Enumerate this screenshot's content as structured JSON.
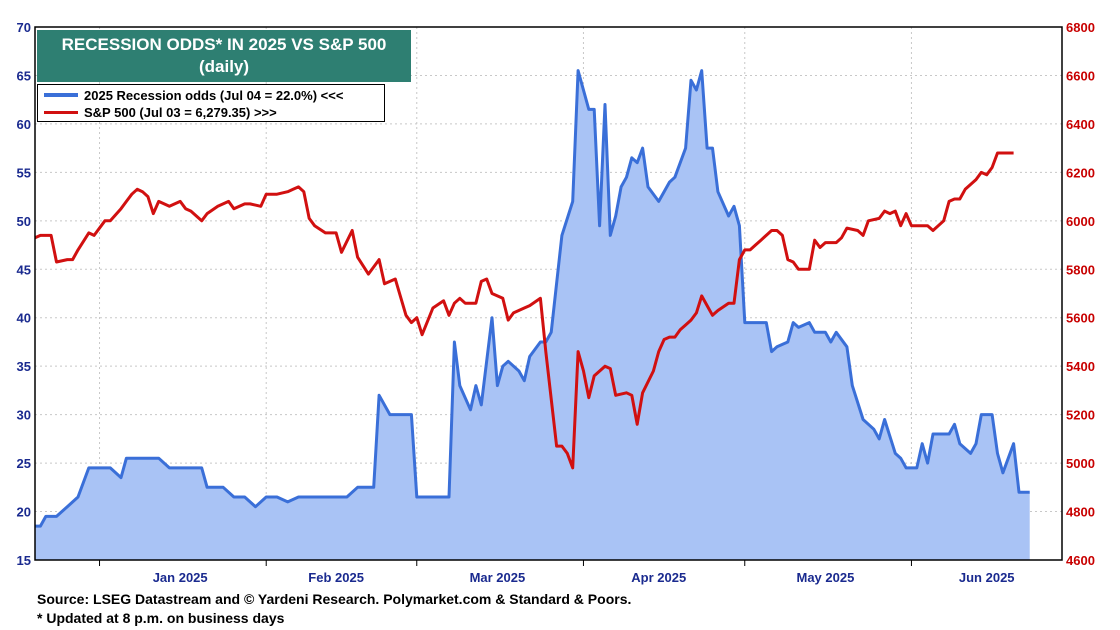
{
  "chart_data": {
    "type": "area",
    "title": "RECESSION ODDS* IN 2025 VS S&P 500",
    "subtitle": "(daily)",
    "legend": {
      "placement": "top-left"
    },
    "grid": true,
    "x_tick_labels": [
      "Jan 2025",
      "Feb 2025",
      "Mar 2025",
      "Apr 2025",
      "May 2025",
      "Jun 2025"
    ],
    "y_left": {
      "ylim": [
        15,
        70
      ],
      "ticks": [
        15,
        20,
        25,
        30,
        35,
        40,
        45,
        50,
        55,
        60,
        65,
        70
      ],
      "color": "#1a2a8f"
    },
    "y_right": {
      "ylim": [
        4600,
        6800
      ],
      "ticks": [
        4600,
        4800,
        5000,
        5200,
        5400,
        5600,
        5800,
        6000,
        6200,
        6400,
        6600,
        6800
      ],
      "color": "#c80000"
    },
    "series": [
      {
        "name": "2025 Recession odds (Jul 04 = 22.0%) <<<",
        "axis": "left",
        "color": "#3a6fd8",
        "fill": "#a9c3f5",
        "points": [
          [
            "2024-12-20",
            18.5
          ],
          [
            "2024-12-21",
            18.5
          ],
          [
            "2024-12-22",
            19.5
          ],
          [
            "2024-12-23",
            19.5
          ],
          [
            "2024-12-24",
            19.5
          ],
          [
            "2024-12-26",
            20.5
          ],
          [
            "2024-12-28",
            21.5
          ],
          [
            "2024-12-30",
            24.5
          ],
          [
            "2025-01-02",
            24.5
          ],
          [
            "2025-01-03",
            24.5
          ],
          [
            "2025-01-05",
            23.5
          ],
          [
            "2025-01-06",
            25.5
          ],
          [
            "2025-01-08",
            25.5
          ],
          [
            "2025-01-10",
            25.5
          ],
          [
            "2025-01-12",
            25.5
          ],
          [
            "2025-01-14",
            24.5
          ],
          [
            "2025-01-16",
            24.5
          ],
          [
            "2025-01-18",
            24.5
          ],
          [
            "2025-01-20",
            24.5
          ],
          [
            "2025-01-21",
            22.5
          ],
          [
            "2025-01-24",
            22.5
          ],
          [
            "2025-01-26",
            21.5
          ],
          [
            "2025-01-28",
            21.5
          ],
          [
            "2025-01-30",
            20.5
          ],
          [
            "2025-02-01",
            21.5
          ],
          [
            "2025-02-03",
            21.5
          ],
          [
            "2025-02-05",
            21.0
          ],
          [
            "2025-02-07",
            21.5
          ],
          [
            "2025-02-10",
            21.5
          ],
          [
            "2025-02-13",
            21.5
          ],
          [
            "2025-02-16",
            21.5
          ],
          [
            "2025-02-18",
            22.5
          ],
          [
            "2025-02-21",
            22.5
          ],
          [
            "2025-02-22",
            32.0
          ],
          [
            "2025-02-24",
            30.0
          ],
          [
            "2025-02-28",
            30.0
          ],
          [
            "2025-03-01",
            21.5
          ],
          [
            "2025-03-04",
            21.5
          ],
          [
            "2025-03-07",
            21.5
          ],
          [
            "2025-03-08",
            37.5
          ],
          [
            "2025-03-09",
            33.0
          ],
          [
            "2025-03-11",
            30.5
          ],
          [
            "2025-03-12",
            33.0
          ],
          [
            "2025-03-13",
            31.0
          ],
          [
            "2025-03-15",
            40.0
          ],
          [
            "2025-03-16",
            33.0
          ],
          [
            "2025-03-17",
            35.0
          ],
          [
            "2025-03-18",
            35.5
          ],
          [
            "2025-03-20",
            34.5
          ],
          [
            "2025-03-21",
            33.5
          ],
          [
            "2025-03-22",
            36.0
          ],
          [
            "2025-03-24",
            37.5
          ],
          [
            "2025-03-25",
            37.5
          ],
          [
            "2025-03-26",
            38.5
          ],
          [
            "2025-03-28",
            48.5
          ],
          [
            "2025-03-30",
            52.0
          ],
          [
            "2025-03-31",
            65.5
          ],
          [
            "2025-04-02",
            61.5
          ],
          [
            "2025-04-03",
            61.5
          ],
          [
            "2025-04-04",
            49.5
          ],
          [
            "2025-04-05",
            62.0
          ],
          [
            "2025-04-06",
            48.5
          ],
          [
            "2025-04-07",
            50.5
          ],
          [
            "2025-04-08",
            53.5
          ],
          [
            "2025-04-09",
            54.5
          ],
          [
            "2025-04-10",
            56.5
          ],
          [
            "2025-04-11",
            56.0
          ],
          [
            "2025-04-12",
            57.5
          ],
          [
            "2025-04-13",
            53.5
          ],
          [
            "2025-04-15",
            52.0
          ],
          [
            "2025-04-17",
            54.0
          ],
          [
            "2025-04-18",
            54.5
          ],
          [
            "2025-04-20",
            57.5
          ],
          [
            "2025-04-21",
            64.5
          ],
          [
            "2025-04-22",
            63.5
          ],
          [
            "2025-04-23",
            65.5
          ],
          [
            "2025-04-24",
            57.5
          ],
          [
            "2025-04-25",
            57.5
          ],
          [
            "2025-04-26",
            53.0
          ],
          [
            "2025-04-28",
            50.5
          ],
          [
            "2025-04-29",
            51.5
          ],
          [
            "2025-04-30",
            49.5
          ],
          [
            "2025-05-01",
            39.5
          ],
          [
            "2025-05-03",
            39.5
          ],
          [
            "2025-05-05",
            39.5
          ],
          [
            "2025-05-06",
            36.5
          ],
          [
            "2025-05-07",
            37.0
          ],
          [
            "2025-05-09",
            37.5
          ],
          [
            "2025-05-10",
            39.5
          ],
          [
            "2025-05-11",
            39.0
          ],
          [
            "2025-05-13",
            39.5
          ],
          [
            "2025-05-14",
            38.5
          ],
          [
            "2025-05-16",
            38.5
          ],
          [
            "2025-05-17",
            37.5
          ],
          [
            "2025-05-18",
            38.5
          ],
          [
            "2025-05-20",
            37.0
          ],
          [
            "2025-05-21",
            33.0
          ],
          [
            "2025-05-23",
            29.5
          ],
          [
            "2025-05-25",
            28.5
          ],
          [
            "2025-05-26",
            27.5
          ],
          [
            "2025-05-27",
            29.5
          ],
          [
            "2025-05-29",
            26.0
          ],
          [
            "2025-05-30",
            25.5
          ],
          [
            "2025-05-31",
            24.5
          ],
          [
            "2025-06-02",
            24.5
          ],
          [
            "2025-06-03",
            27.0
          ],
          [
            "2025-06-04",
            25.0
          ],
          [
            "2025-06-05",
            28.0
          ],
          [
            "2025-06-08",
            28.0
          ],
          [
            "2025-06-09",
            29.0
          ],
          [
            "2025-06-10",
            27.0
          ],
          [
            "2025-06-12",
            26.0
          ],
          [
            "2025-06-13",
            27.0
          ],
          [
            "2025-06-14",
            30.0
          ],
          [
            "2025-06-16",
            30.0
          ],
          [
            "2025-06-17",
            26.0
          ],
          [
            "2025-06-18",
            24.0
          ],
          [
            "2025-06-20",
            27.0
          ],
          [
            "2025-06-21",
            22.0
          ],
          [
            "2025-06-23",
            22.0
          ]
        ]
      },
      {
        "name": "S&P 500 (Jul 03 = 6,279.35) >>>",
        "axis": "right",
        "color": "#d11010",
        "points": [
          [
            "2024-12-20",
            5930
          ],
          [
            "2024-12-21",
            5940
          ],
          [
            "2024-12-23",
            5940
          ],
          [
            "2024-12-24",
            5830
          ],
          [
            "2024-12-26",
            5840
          ],
          [
            "2024-12-27",
            5840
          ],
          [
            "2024-12-28",
            5880
          ],
          [
            "2024-12-30",
            5950
          ],
          [
            "2024-12-31",
            5940
          ],
          [
            "2025-01-02",
            6000
          ],
          [
            "2025-01-03",
            6000
          ],
          [
            "2025-01-05",
            6050
          ],
          [
            "2025-01-06",
            6080
          ],
          [
            "2025-01-07",
            6110
          ],
          [
            "2025-01-08",
            6130
          ],
          [
            "2025-01-09",
            6120
          ],
          [
            "2025-01-10",
            6100
          ],
          [
            "2025-01-11",
            6030
          ],
          [
            "2025-01-12",
            6080
          ],
          [
            "2025-01-14",
            6060
          ],
          [
            "2025-01-16",
            6080
          ],
          [
            "2025-01-17",
            6050
          ],
          [
            "2025-01-18",
            6040
          ],
          [
            "2025-01-20",
            6000
          ],
          [
            "2025-01-21",
            6030
          ],
          [
            "2025-01-23",
            6060
          ],
          [
            "2025-01-25",
            6080
          ],
          [
            "2025-01-26",
            6050
          ],
          [
            "2025-01-28",
            6070
          ],
          [
            "2025-01-29",
            6070
          ],
          [
            "2025-01-31",
            6060
          ],
          [
            "2025-02-01",
            6110
          ],
          [
            "2025-02-03",
            6110
          ],
          [
            "2025-02-05",
            6120
          ],
          [
            "2025-02-06",
            6130
          ],
          [
            "2025-02-07",
            6140
          ],
          [
            "2025-02-08",
            6120
          ],
          [
            "2025-02-09",
            6010
          ],
          [
            "2025-02-10",
            5980
          ],
          [
            "2025-02-12",
            5950
          ],
          [
            "2025-02-14",
            5950
          ],
          [
            "2025-02-15",
            5870
          ],
          [
            "2025-02-17",
            5960
          ],
          [
            "2025-02-18",
            5850
          ],
          [
            "2025-02-20",
            5780
          ],
          [
            "2025-02-22",
            5840
          ],
          [
            "2025-02-23",
            5740
          ],
          [
            "2025-02-25",
            5760
          ],
          [
            "2025-02-27",
            5610
          ],
          [
            "2025-02-28",
            5580
          ],
          [
            "2025-03-01",
            5600
          ],
          [
            "2025-03-02",
            5530
          ],
          [
            "2025-03-04",
            5640
          ],
          [
            "2025-03-06",
            5670
          ],
          [
            "2025-03-07",
            5610
          ],
          [
            "2025-03-08",
            5660
          ],
          [
            "2025-03-09",
            5680
          ],
          [
            "2025-03-10",
            5660
          ],
          [
            "2025-03-12",
            5660
          ],
          [
            "2025-03-13",
            5750
          ],
          [
            "2025-03-14",
            5760
          ],
          [
            "2025-03-15",
            5700
          ],
          [
            "2025-03-17",
            5680
          ],
          [
            "2025-03-18",
            5590
          ],
          [
            "2025-03-19",
            5620
          ],
          [
            "2025-03-21",
            5640
          ],
          [
            "2025-03-22",
            5650
          ],
          [
            "2025-03-24",
            5680
          ],
          [
            "2025-03-25",
            5460
          ],
          [
            "2025-03-27",
            5070
          ],
          [
            "2025-03-28",
            5070
          ],
          [
            "2025-03-29",
            5040
          ],
          [
            "2025-03-30",
            4980
          ],
          [
            "2025-03-31",
            5460
          ],
          [
            "2025-04-01",
            5380
          ],
          [
            "2025-04-02",
            5270
          ],
          [
            "2025-04-03",
            5360
          ],
          [
            "2025-04-05",
            5400
          ],
          [
            "2025-04-06",
            5390
          ],
          [
            "2025-04-07",
            5280
          ],
          [
            "2025-04-09",
            5290
          ],
          [
            "2025-04-10",
            5280
          ],
          [
            "2025-04-11",
            5160
          ],
          [
            "2025-04-12",
            5290
          ],
          [
            "2025-04-14",
            5380
          ],
          [
            "2025-04-15",
            5460
          ],
          [
            "2025-04-16",
            5510
          ],
          [
            "2025-04-17",
            5520
          ],
          [
            "2025-04-18",
            5520
          ],
          [
            "2025-04-19",
            5550
          ],
          [
            "2025-04-20",
            5570
          ],
          [
            "2025-04-21",
            5590
          ],
          [
            "2025-04-22",
            5620
          ],
          [
            "2025-04-23",
            5690
          ],
          [
            "2025-04-24",
            5650
          ],
          [
            "2025-04-25",
            5610
          ],
          [
            "2025-04-26",
            5630
          ],
          [
            "2025-04-28",
            5660
          ],
          [
            "2025-04-29",
            5660
          ],
          [
            "2025-04-30",
            5840
          ],
          [
            "2025-05-01",
            5880
          ],
          [
            "2025-05-02",
            5880
          ],
          [
            "2025-05-03",
            5900
          ],
          [
            "2025-05-04",
            5920
          ],
          [
            "2025-05-06",
            5960
          ],
          [
            "2025-05-07",
            5960
          ],
          [
            "2025-05-08",
            5940
          ],
          [
            "2025-05-09",
            5840
          ],
          [
            "2025-05-10",
            5830
          ],
          [
            "2025-05-11",
            5800
          ],
          [
            "2025-05-13",
            5800
          ],
          [
            "2025-05-14",
            5920
          ],
          [
            "2025-05-15",
            5890
          ],
          [
            "2025-05-16",
            5910
          ],
          [
            "2025-05-18",
            5910
          ],
          [
            "2025-05-19",
            5930
          ],
          [
            "2025-05-20",
            5970
          ],
          [
            "2025-05-22",
            5960
          ],
          [
            "2025-05-23",
            5940
          ],
          [
            "2025-05-24",
            6000
          ],
          [
            "2025-05-26",
            6010
          ],
          [
            "2025-05-27",
            6040
          ],
          [
            "2025-05-28",
            6030
          ],
          [
            "2025-05-29",
            6040
          ],
          [
            "2025-05-30",
            5980
          ],
          [
            "2025-05-31",
            6030
          ],
          [
            "2025-06-01",
            5980
          ],
          [
            "2025-06-03",
            5980
          ],
          [
            "2025-06-04",
            5980
          ],
          [
            "2025-06-05",
            5960
          ],
          [
            "2025-06-07",
            6000
          ],
          [
            "2025-06-08",
            6080
          ],
          [
            "2025-06-09",
            6090
          ],
          [
            "2025-06-10",
            6090
          ],
          [
            "2025-06-11",
            6130
          ],
          [
            "2025-06-13",
            6170
          ],
          [
            "2025-06-14",
            6200
          ],
          [
            "2025-06-15",
            6190
          ],
          [
            "2025-06-16",
            6220
          ],
          [
            "2025-06-17",
            6280
          ],
          [
            "2025-06-18",
            6280
          ],
          [
            "2025-06-19",
            6280
          ],
          [
            "2025-06-20",
            6280
          ]
        ]
      }
    ]
  },
  "footer": {
    "source": "Source: LSEG Datastream and © Yardeni Research. Polymarket.com & Standard & Poors.",
    "note": "* Updated at 8 p.m. on business days"
  }
}
